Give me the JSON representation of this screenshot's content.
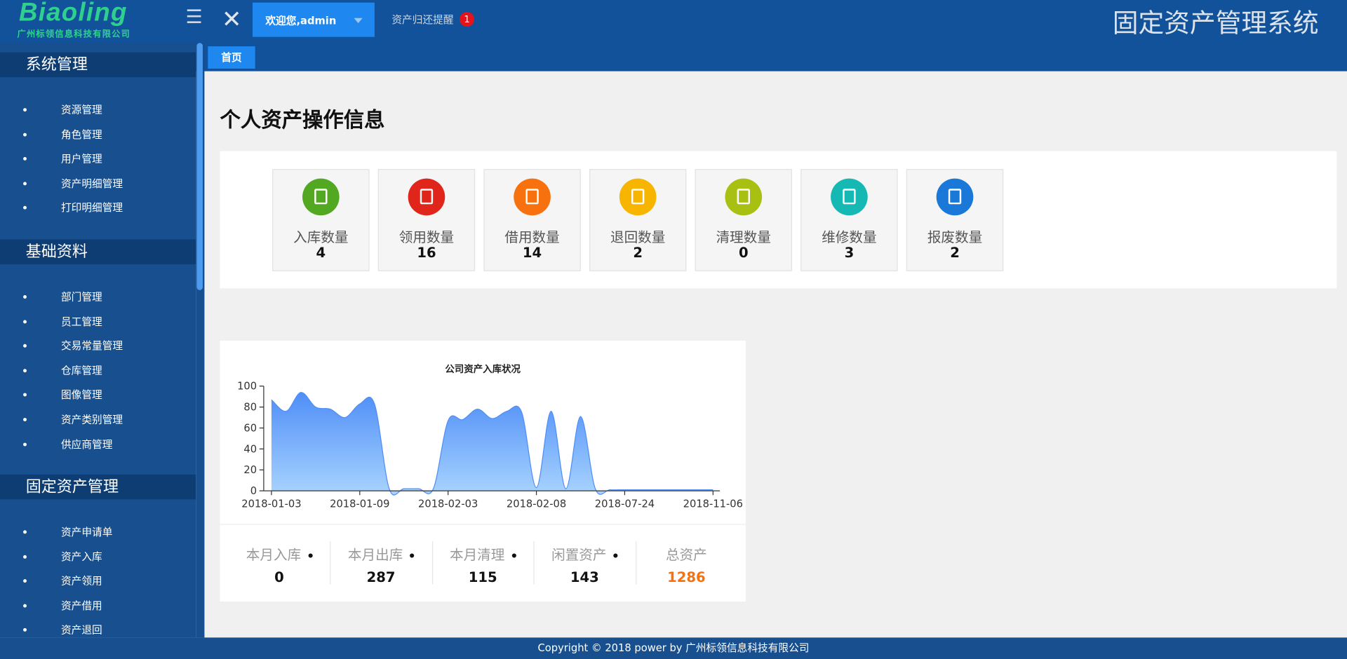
{
  "header": {
    "logo": "Biaoling",
    "logo_sub": "广州标领信息科技有限公司",
    "welcome": "欢迎您,admin",
    "reminder": "资产归还提醒",
    "reminder_count": 1,
    "system_title": "固定资产管理系统"
  },
  "sidebar": {
    "sections": [
      {
        "title": "系统管理",
        "items": [
          "资源管理",
          "角色管理",
          "用户管理",
          "资产明细管理",
          "打印明细管理"
        ]
      },
      {
        "title": "基础资料",
        "items": [
          "部门管理",
          "员工管理",
          "交易常量管理",
          "仓库管理",
          "图像管理",
          "资产类别管理",
          "供应商管理"
        ]
      },
      {
        "title": "固定资产管理",
        "items": [
          "资产申请单",
          "资产入库",
          "资产领用",
          "资产借用",
          "资产退回"
        ]
      }
    ]
  },
  "tabs": [
    "首页"
  ],
  "page_title": "个人资产操作信息",
  "stats": [
    {
      "label": "入库数量",
      "value": 4
    },
    {
      "label": "领用数量",
      "value": 16
    },
    {
      "label": "借用数量",
      "value": 14
    },
    {
      "label": "退回数量",
      "value": 2
    },
    {
      "label": "清理数量",
      "value": 0
    },
    {
      "label": "维修数量",
      "value": 3
    },
    {
      "label": "报废数量",
      "value": 2
    }
  ],
  "chart_data": {
    "type": "area",
    "title": "公司资产入库状况",
    "categories": [
      "2018-01-03",
      null,
      null,
      null,
      null,
      null,
      "2018-01-09",
      null,
      null,
      null,
      null,
      null,
      "2018-02-03",
      null,
      null,
      null,
      null,
      null,
      "2018-02-08",
      null,
      null,
      null,
      null,
      null,
      "2018-07-24",
      null,
      null,
      null,
      null,
      null,
      "2018-11-06"
    ],
    "values": [
      87,
      76,
      94,
      80,
      78,
      70,
      83,
      83,
      2,
      2,
      2,
      2,
      67,
      68,
      78,
      69,
      76,
      75,
      3,
      76,
      2,
      71,
      2,
      1,
      1,
      1,
      1,
      1,
      1,
      1,
      1
    ],
    "color": "#4f8ef7",
    "ylim": [
      0,
      100
    ],
    "yticks": [
      0,
      20,
      40,
      60,
      80,
      100
    ]
  },
  "summary": [
    {
      "label": "本月入库",
      "value": 0
    },
    {
      "label": "本月出库",
      "value": 287
    },
    {
      "label": "本月清理",
      "value": 115
    },
    {
      "label": "闲置资产",
      "value": 143
    },
    {
      "label": "总资产",
      "value": 1286
    }
  ],
  "footer": "Copyright © 2018 power by 广州标领信息科技有限公司"
}
